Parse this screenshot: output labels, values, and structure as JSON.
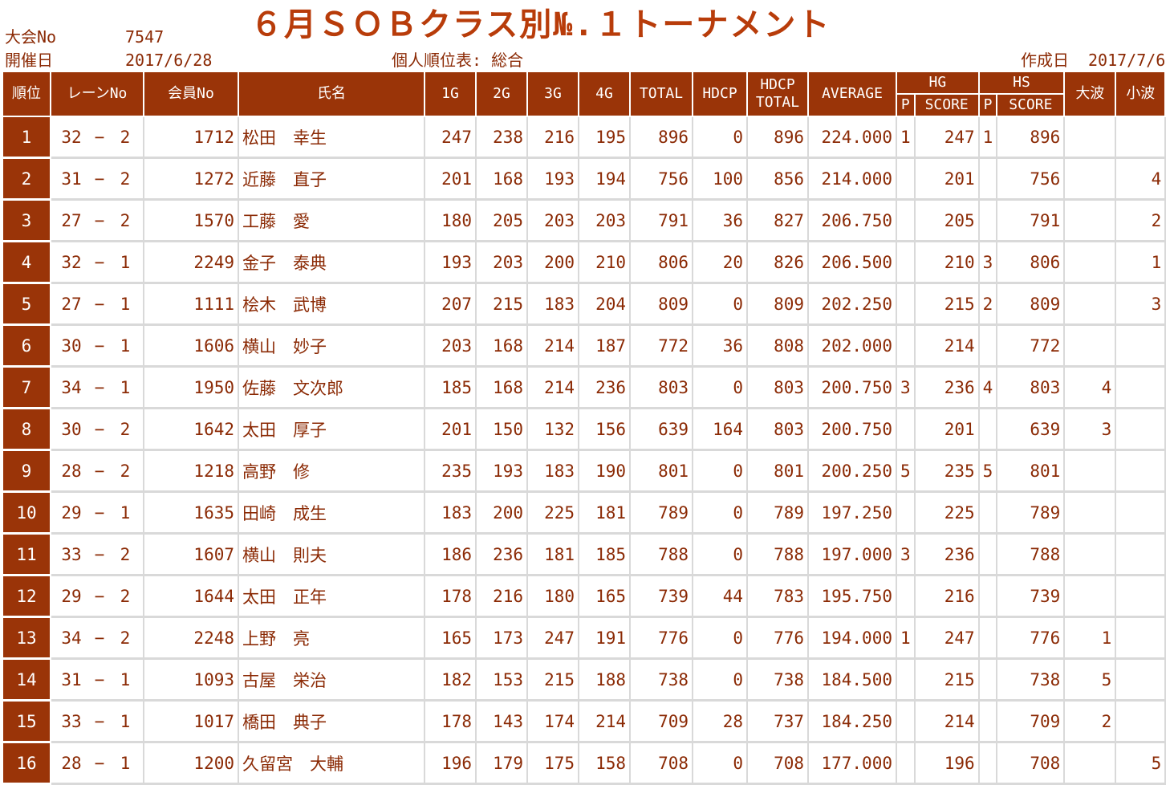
{
  "header": {
    "event_no_label": "大会No",
    "event_no": "7547",
    "date_label": "開催日",
    "date": "2017/6/28",
    "title": "６月ＳＯＢクラス別№.１トーナメント",
    "subtitle": "個人順位表: 総合",
    "created_label": "作成日",
    "created_date": "2017/7/6"
  },
  "table": {
    "headers": {
      "rank": "順位",
      "lane": "レーンNo",
      "member": "会員No",
      "name": "氏名",
      "g1": "1G",
      "g2": "2G",
      "g3": "3G",
      "g4": "4G",
      "total": "TOTAL",
      "hdcp": "HDCP",
      "hdcp_total_1": "HDCP",
      "hdcp_total_2": "TOTAL",
      "average": "AVERAGE",
      "hg": "HG",
      "hg_p": "P",
      "hg_score": "SCORE",
      "hs": "HS",
      "hs_p": "P",
      "hs_score": "SCORE",
      "big_wave": "大波",
      "small_wave": "小波"
    },
    "rows": [
      {
        "rank": "1",
        "lane1": "32",
        "dash": "−",
        "lane2": "2",
        "member": "1712",
        "name": "松田　幸生",
        "g1": "247",
        "g2": "238",
        "g3": "216",
        "g4": "195",
        "total": "896",
        "hdcp": "0",
        "hdcp_total": "896",
        "average": "224.000",
        "hg_p": "1",
        "hg_score": "247",
        "hs_p": "1",
        "hs_score": "896",
        "big": "",
        "small": ""
      },
      {
        "rank": "2",
        "lane1": "31",
        "dash": "−",
        "lane2": "2",
        "member": "1272",
        "name": "近藤　直子",
        "g1": "201",
        "g2": "168",
        "g3": "193",
        "g4": "194",
        "total": "756",
        "hdcp": "100",
        "hdcp_total": "856",
        "average": "214.000",
        "hg_p": "",
        "hg_score": "201",
        "hs_p": "",
        "hs_score": "756",
        "big": "",
        "small": "4"
      },
      {
        "rank": "3",
        "lane1": "27",
        "dash": "−",
        "lane2": "2",
        "member": "1570",
        "name": "工藤　愛",
        "g1": "180",
        "g2": "205",
        "g3": "203",
        "g4": "203",
        "total": "791",
        "hdcp": "36",
        "hdcp_total": "827",
        "average": "206.750",
        "hg_p": "",
        "hg_score": "205",
        "hs_p": "",
        "hs_score": "791",
        "big": "",
        "small": "2"
      },
      {
        "rank": "4",
        "lane1": "32",
        "dash": "−",
        "lane2": "1",
        "member": "2249",
        "name": "金子　泰典",
        "g1": "193",
        "g2": "203",
        "g3": "200",
        "g4": "210",
        "total": "806",
        "hdcp": "20",
        "hdcp_total": "826",
        "average": "206.500",
        "hg_p": "",
        "hg_score": "210",
        "hs_p": "3",
        "hs_score": "806",
        "big": "",
        "small": "1"
      },
      {
        "rank": "5",
        "lane1": "27",
        "dash": "−",
        "lane2": "1",
        "member": "1111",
        "name": "桧木　武博",
        "g1": "207",
        "g2": "215",
        "g3": "183",
        "g4": "204",
        "total": "809",
        "hdcp": "0",
        "hdcp_total": "809",
        "average": "202.250",
        "hg_p": "",
        "hg_score": "215",
        "hs_p": "2",
        "hs_score": "809",
        "big": "",
        "small": "3"
      },
      {
        "rank": "6",
        "lane1": "30",
        "dash": "−",
        "lane2": "1",
        "member": "1606",
        "name": "横山　妙子",
        "g1": "203",
        "g2": "168",
        "g3": "214",
        "g4": "187",
        "total": "772",
        "hdcp": "36",
        "hdcp_total": "808",
        "average": "202.000",
        "hg_p": "",
        "hg_score": "214",
        "hs_p": "",
        "hs_score": "772",
        "big": "",
        "small": ""
      },
      {
        "rank": "7",
        "lane1": "34",
        "dash": "−",
        "lane2": "1",
        "member": "1950",
        "name": "佐藤　文次郎",
        "g1": "185",
        "g2": "168",
        "g3": "214",
        "g4": "236",
        "total": "803",
        "hdcp": "0",
        "hdcp_total": "803",
        "average": "200.750",
        "hg_p": "3",
        "hg_score": "236",
        "hs_p": "4",
        "hs_score": "803",
        "big": "4",
        "small": ""
      },
      {
        "rank": "8",
        "lane1": "30",
        "dash": "−",
        "lane2": "2",
        "member": "1642",
        "name": "太田　厚子",
        "g1": "201",
        "g2": "150",
        "g3": "132",
        "g4": "156",
        "total": "639",
        "hdcp": "164",
        "hdcp_total": "803",
        "average": "200.750",
        "hg_p": "",
        "hg_score": "201",
        "hs_p": "",
        "hs_score": "639",
        "big": "3",
        "small": ""
      },
      {
        "rank": "9",
        "lane1": "28",
        "dash": "−",
        "lane2": "2",
        "member": "1218",
        "name": "高野　修",
        "g1": "235",
        "g2": "193",
        "g3": "183",
        "g4": "190",
        "total": "801",
        "hdcp": "0",
        "hdcp_total": "801",
        "average": "200.250",
        "hg_p": "5",
        "hg_score": "235",
        "hs_p": "5",
        "hs_score": "801",
        "big": "",
        "small": ""
      },
      {
        "rank": "10",
        "lane1": "29",
        "dash": "−",
        "lane2": "1",
        "member": "1635",
        "name": "田崎　成生",
        "g1": "183",
        "g2": "200",
        "g3": "225",
        "g4": "181",
        "total": "789",
        "hdcp": "0",
        "hdcp_total": "789",
        "average": "197.250",
        "hg_p": "",
        "hg_score": "225",
        "hs_p": "",
        "hs_score": "789",
        "big": "",
        "small": ""
      },
      {
        "rank": "11",
        "lane1": "33",
        "dash": "−",
        "lane2": "2",
        "member": "1607",
        "name": "横山　則夫",
        "g1": "186",
        "g2": "236",
        "g3": "181",
        "g4": "185",
        "total": "788",
        "hdcp": "0",
        "hdcp_total": "788",
        "average": "197.000",
        "hg_p": "3",
        "hg_score": "236",
        "hs_p": "",
        "hs_score": "788",
        "big": "",
        "small": ""
      },
      {
        "rank": "12",
        "lane1": "29",
        "dash": "−",
        "lane2": "2",
        "member": "1644",
        "name": "太田　正年",
        "g1": "178",
        "g2": "216",
        "g3": "180",
        "g4": "165",
        "total": "739",
        "hdcp": "44",
        "hdcp_total": "783",
        "average": "195.750",
        "hg_p": "",
        "hg_score": "216",
        "hs_p": "",
        "hs_score": "739",
        "big": "",
        "small": ""
      },
      {
        "rank": "13",
        "lane1": "34",
        "dash": "−",
        "lane2": "2",
        "member": "2248",
        "name": "上野　亮",
        "g1": "165",
        "g2": "173",
        "g3": "247",
        "g4": "191",
        "total": "776",
        "hdcp": "0",
        "hdcp_total": "776",
        "average": "194.000",
        "hg_p": "1",
        "hg_score": "247",
        "hs_p": "",
        "hs_score": "776",
        "big": "1",
        "small": ""
      },
      {
        "rank": "14",
        "lane1": "31",
        "dash": "−",
        "lane2": "1",
        "member": "1093",
        "name": "古屋　栄治",
        "g1": "182",
        "g2": "153",
        "g3": "215",
        "g4": "188",
        "total": "738",
        "hdcp": "0",
        "hdcp_total": "738",
        "average": "184.500",
        "hg_p": "",
        "hg_score": "215",
        "hs_p": "",
        "hs_score": "738",
        "big": "5",
        "small": ""
      },
      {
        "rank": "15",
        "lane1": "33",
        "dash": "−",
        "lane2": "1",
        "member": "1017",
        "name": "橋田　典子",
        "g1": "178",
        "g2": "143",
        "g3": "174",
        "g4": "214",
        "total": "709",
        "hdcp": "28",
        "hdcp_total": "737",
        "average": "184.250",
        "hg_p": "",
        "hg_score": "214",
        "hs_p": "",
        "hs_score": "709",
        "big": "2",
        "small": ""
      },
      {
        "rank": "16",
        "lane1": "28",
        "dash": "−",
        "lane2": "1",
        "member": "1200",
        "name": "久留宮　大輔",
        "g1": "196",
        "g2": "179",
        "g3": "175",
        "g4": "158",
        "total": "708",
        "hdcp": "0",
        "hdcp_total": "708",
        "average": "177.000",
        "hg_p": "",
        "hg_score": "196",
        "hs_p": "",
        "hs_score": "708",
        "big": "",
        "small": "5"
      }
    ]
  }
}
